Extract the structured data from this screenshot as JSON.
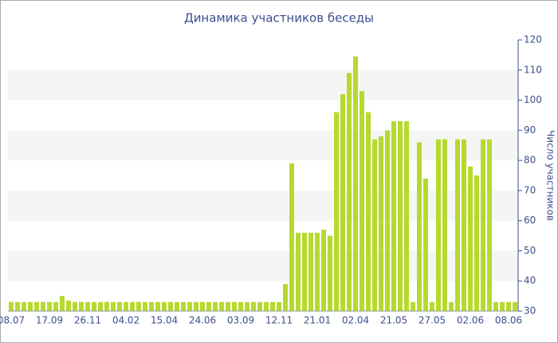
{
  "chart_data": {
    "type": "bar",
    "title": "Динамика участников беседы",
    "y_label": "Число участников",
    "categories": [
      "08.07",
      null,
      null,
      null,
      null,
      null,
      "17.09",
      null,
      null,
      null,
      null,
      null,
      "26.11",
      null,
      null,
      null,
      null,
      null,
      "04.02",
      null,
      null,
      null,
      null,
      null,
      "15.04",
      null,
      null,
      null,
      null,
      null,
      "24.06",
      null,
      null,
      null,
      null,
      null,
      "03.09",
      null,
      null,
      null,
      null,
      null,
      "12.11",
      null,
      null,
      null,
      null,
      null,
      "21.01",
      null,
      null,
      null,
      null,
      null,
      "02.04",
      null,
      null,
      null,
      null,
      null,
      "21.05",
      null,
      null,
      null,
      null,
      null,
      "27.05",
      null,
      null,
      null,
      null,
      null,
      "02.06",
      null,
      null,
      null,
      null,
      null,
      "08.06",
      null
    ],
    "values": [
      33,
      33,
      33,
      33,
      33,
      33,
      33,
      33,
      35,
      33.5,
      33,
      33,
      33,
      33,
      33,
      33,
      33,
      33,
      33,
      33,
      33,
      33,
      33,
      33,
      33,
      33,
      33,
      33,
      33,
      33,
      33,
      33,
      33,
      33,
      33,
      33,
      33,
      33,
      33,
      33,
      33,
      33,
      33,
      39,
      79,
      56,
      56,
      56,
      56,
      57,
      55,
      96,
      102,
      109,
      114.5,
      103,
      96,
      87,
      88,
      90,
      93,
      93,
      93,
      33,
      86,
      74,
      33,
      87,
      87,
      33,
      87,
      87,
      78,
      75,
      87,
      87,
      33,
      33,
      33,
      33
    ],
    "color": "#b6d92e",
    "ylim": [
      30,
      120
    ],
    "yticks": [
      30,
      40,
      50,
      60,
      70,
      80,
      90,
      100,
      110,
      120
    ],
    "y_axis_side": "right",
    "banded_grid": true
  }
}
